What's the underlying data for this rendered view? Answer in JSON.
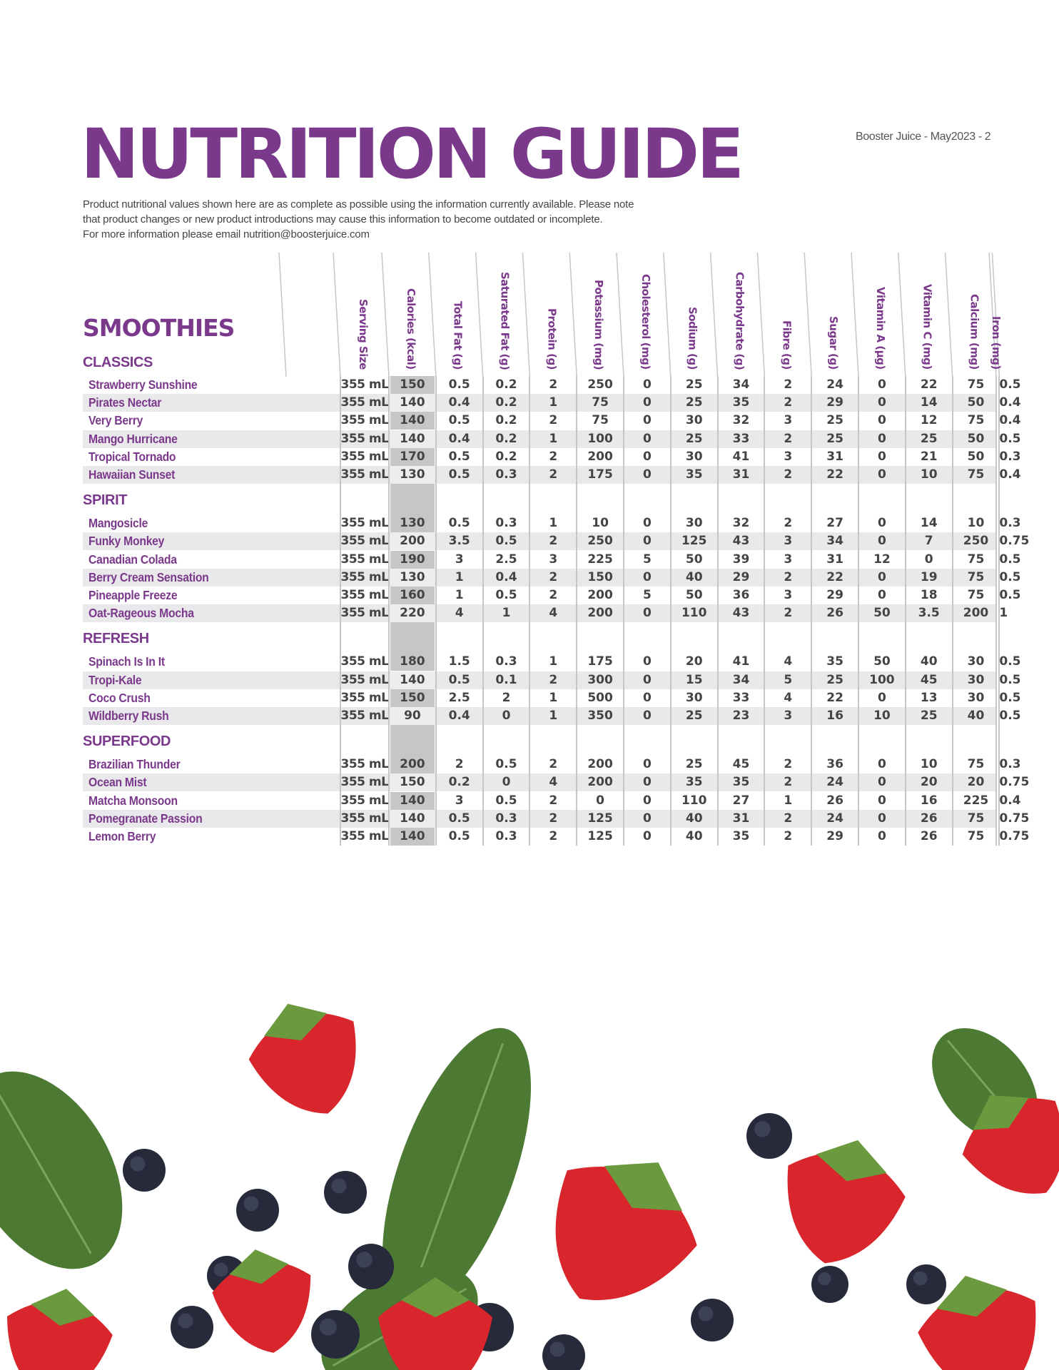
{
  "title": "NUTRITION GUIDE",
  "page_info": "Booster Juice - May2023 - 2",
  "intro": [
    "Product nutritional values shown here are as complete as possible using the information currently available. Please note",
    "that product changes or new product introductions may cause this information to become outdated or incomplete.",
    "For more information please email  nutrition@boosterjuice.com"
  ],
  "category": "SMOOTHIES",
  "columns": [
    "Serving Size",
    "Calories (kcal)",
    "Total Fat (g)",
    "Saturated Fat (g)",
    "Protein (g)",
    "Potassium (mg)",
    "Cholesterol (mg)",
    "Sodium (g)",
    "Carbohydrate (g)",
    "Fibre (g)",
    "Sugar (g)",
    "Vitamin A (µg)",
    "Vitamin C (mg)",
    "Calcium (mg)",
    "Iron (mg)"
  ],
  "colors": {
    "brand_purple": "#7b398c",
    "row_stripe": "#e9e9eb",
    "calorie_column": "#c6c6c8"
  },
  "sections": [
    {
      "name": "CLASSICS",
      "rows": [
        {
          "name": "Strawberry Sunshine",
          "values": [
            "355 mL",
            "150",
            "0.5",
            "0.2",
            "2",
            "250",
            "0",
            "25",
            "34",
            "2",
            "24",
            "0",
            "22",
            "75",
            "0.5"
          ]
        },
        {
          "name": "Pirates Nectar",
          "values": [
            "355 mL",
            "140",
            "0.4",
            "0.2",
            "1",
            "75",
            "0",
            "25",
            "35",
            "2",
            "29",
            "0",
            "14",
            "50",
            "0.4"
          ]
        },
        {
          "name": "Very Berry",
          "values": [
            "355 mL",
            "140",
            "0.5",
            "0.2",
            "2",
            "75",
            "0",
            "30",
            "32",
            "3",
            "25",
            "0",
            "12",
            "75",
            "0.4"
          ]
        },
        {
          "name": "Mango Hurricane",
          "values": [
            "355 mL",
            "140",
            "0.4",
            "0.2",
            "1",
            "100",
            "0",
            "25",
            "33",
            "2",
            "25",
            "0",
            "25",
            "50",
            "0.5"
          ]
        },
        {
          "name": "Tropical Tornado",
          "values": [
            "355 mL",
            "170",
            "0.5",
            "0.2",
            "2",
            "200",
            "0",
            "30",
            "41",
            "3",
            "31",
            "0",
            "21",
            "50",
            "0.3"
          ]
        },
        {
          "name": "Hawaiian Sunset",
          "values": [
            "355 mL",
            "130",
            "0.5",
            "0.3",
            "2",
            "175",
            "0",
            "35",
            "31",
            "2",
            "22",
            "0",
            "10",
            "75",
            "0.4"
          ]
        }
      ]
    },
    {
      "name": "SPIRIT",
      "rows": [
        {
          "name": "Mangosicle",
          "values": [
            "355 mL",
            "130",
            "0.5",
            "0.3",
            "1",
            "10",
            "0",
            "30",
            "32",
            "2",
            "27",
            "0",
            "14",
            "10",
            "0.3"
          ]
        },
        {
          "name": "Funky Monkey",
          "values": [
            "355 mL",
            "200",
            "3.5",
            "0.5",
            "2",
            "250",
            "0",
            "125",
            "43",
            "3",
            "34",
            "0",
            "7",
            "250",
            "0.75"
          ]
        },
        {
          "name": "Canadian Colada",
          "values": [
            "355 mL",
            "190",
            "3",
            "2.5",
            "3",
            "225",
            "5",
            "50",
            "39",
            "3",
            "31",
            "12",
            "0",
            "75",
            "0.5"
          ]
        },
        {
          "name": "Berry Cream Sensation",
          "values": [
            "355 mL",
            "130",
            "1",
            "0.4",
            "2",
            "150",
            "0",
            "40",
            "29",
            "2",
            "22",
            "0",
            "19",
            "75",
            "0.5"
          ]
        },
        {
          "name": "Pineapple Freeze",
          "values": [
            "355 mL",
            "160",
            "1",
            "0.5",
            "2",
            "200",
            "5",
            "50",
            "36",
            "3",
            "29",
            "0",
            "18",
            "75",
            "0.5"
          ]
        },
        {
          "name": "Oat-Rageous Mocha",
          "values": [
            "355 mL",
            "220",
            "4",
            "1",
            "4",
            "200",
            "0",
            "110",
            "43",
            "2",
            "26",
            "50",
            "3.5",
            "200",
            "1"
          ]
        }
      ]
    },
    {
      "name": "REFRESH",
      "rows": [
        {
          "name": "Spinach Is In It",
          "values": [
            "355 mL",
            "180",
            "1.5",
            "0.3",
            "1",
            "175",
            "0",
            "20",
            "41",
            "4",
            "35",
            "50",
            "40",
            "30",
            "0.5"
          ]
        },
        {
          "name": "Tropi-Kale",
          "values": [
            "355 mL",
            "140",
            "0.5",
            "0.1",
            "2",
            "300",
            "0",
            "15",
            "34",
            "5",
            "25",
            "100",
            "45",
            "30",
            "0.5"
          ]
        },
        {
          "name": "Coco Crush",
          "values": [
            "355 mL",
            "150",
            "2.5",
            "2",
            "1",
            "500",
            "0",
            "30",
            "33",
            "4",
            "22",
            "0",
            "13",
            "30",
            "0.5"
          ]
        },
        {
          "name": "Wildberry Rush",
          "values": [
            "355 mL",
            "90",
            "0.4",
            "0",
            "1",
            "350",
            "0",
            "25",
            "23",
            "3",
            "16",
            "10",
            "25",
            "40",
            "0.5"
          ]
        }
      ]
    },
    {
      "name": "SUPERFOOD",
      "rows": [
        {
          "name": "Brazilian Thunder",
          "values": [
            "355 mL",
            "200",
            "2",
            "0.5",
            "2",
            "200",
            "0",
            "25",
            "45",
            "2",
            "36",
            "0",
            "10",
            "75",
            "0.3"
          ]
        },
        {
          "name": "Ocean Mist",
          "values": [
            "355 mL",
            "150",
            "0.2",
            "0",
            "4",
            "200",
            "0",
            "35",
            "35",
            "2",
            "24",
            "0",
            "20",
            "20",
            "0.75"
          ]
        },
        {
          "name": "Matcha Monsoon",
          "values": [
            "355 mL",
            "140",
            "3",
            "0.5",
            "2",
            "0",
            "0",
            "110",
            "27",
            "1",
            "26",
            "0",
            "16",
            "225",
            "0.4"
          ]
        },
        {
          "name": "Pomegranate Passion",
          "values": [
            "355 mL",
            "140",
            "0.5",
            "0.3",
            "2",
            "125",
            "0",
            "40",
            "31",
            "2",
            "24",
            "0",
            "26",
            "75",
            "0.75"
          ]
        },
        {
          "name": "Lemon Berry",
          "values": [
            "355 mL",
            "140",
            "0.5",
            "0.3",
            "2",
            "125",
            "0",
            "40",
            "35",
            "2",
            "29",
            "0",
            "26",
            "75",
            "0.75"
          ]
        }
      ]
    }
  ]
}
